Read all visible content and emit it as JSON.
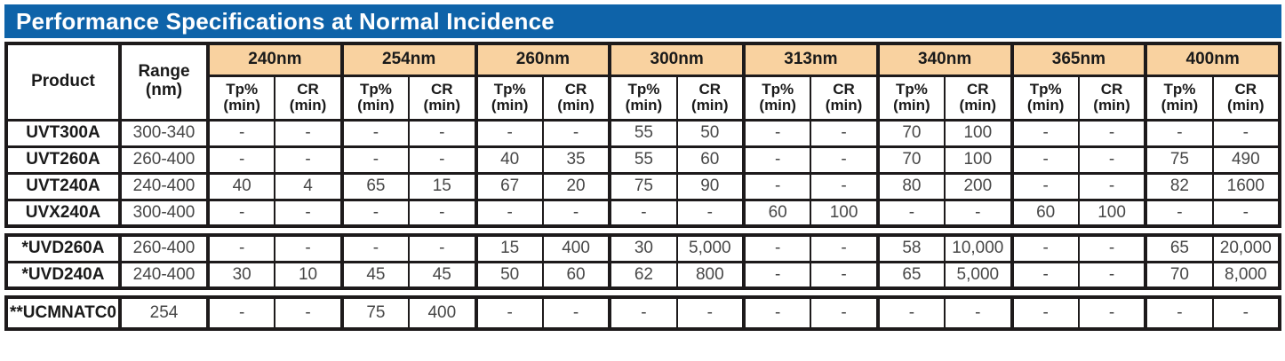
{
  "title": "Performance Specifications at Normal Incidence",
  "header": {
    "product_label": "Product",
    "range_line1": "Range",
    "range_line2": "(nm)",
    "wavelengths": [
      "240nm",
      "254nm",
      "260nm",
      "300nm",
      "313nm",
      "340nm",
      "365nm",
      "400nm"
    ],
    "sub_tp": "Tp%",
    "sub_cr": "CR",
    "sub_min": "(min)"
  },
  "sections": [
    {
      "rows": [
        {
          "product": "UVT300A",
          "range": "300-340",
          "values": [
            "-",
            "-",
            "-",
            "-",
            "-",
            "-",
            "55",
            "50",
            "-",
            "-",
            "70",
            "100",
            "-",
            "-",
            "-",
            "-"
          ]
        },
        {
          "product": "UVT260A",
          "range": "260-400",
          "values": [
            "-",
            "-",
            "-",
            "-",
            "40",
            "35",
            "55",
            "60",
            "-",
            "-",
            "70",
            "100",
            "-",
            "-",
            "75",
            "490"
          ]
        },
        {
          "product": "UVT240A",
          "range": "240-400",
          "values": [
            "40",
            "4",
            "65",
            "15",
            "67",
            "20",
            "75",
            "90",
            "-",
            "-",
            "80",
            "200",
            "-",
            "-",
            "82",
            "1600"
          ]
        },
        {
          "product": "UVX240A",
          "range": "300-400",
          "values": [
            "-",
            "-",
            "-",
            "-",
            "-",
            "-",
            "-",
            "-",
            "60",
            "100",
            "-",
            "-",
            "60",
            "100",
            "-",
            "-"
          ]
        }
      ]
    },
    {
      "rows": [
        {
          "product": "*UVD260A",
          "range": "260-400",
          "values": [
            "-",
            "-",
            "-",
            "-",
            "15",
            "400",
            "30",
            "5,000",
            "-",
            "-",
            "58",
            "10,000",
            "-",
            "-",
            "65",
            "20,000"
          ]
        },
        {
          "product": "*UVD240A",
          "range": "240-400",
          "values": [
            "30",
            "10",
            "45",
            "45",
            "50",
            "60",
            "62",
            "800",
            "-",
            "-",
            "65",
            "5,000",
            "-",
            "-",
            "70",
            "8,000"
          ]
        }
      ]
    },
    {
      "rows": [
        {
          "product": "**UCMNATC0",
          "range": "254",
          "values": [
            "-",
            "-",
            "75",
            "400",
            "-",
            "-",
            "-",
            "-",
            "-",
            "-",
            "-",
            "-",
            "-",
            "-",
            "-",
            "-"
          ]
        }
      ]
    }
  ],
  "colors": {
    "title_bar_bg": "#0e63a9",
    "title_text": "#ffffff",
    "wavelength_header_bg": "#f9d2a0",
    "border": "#1d1a1b",
    "header_text": "#1a1a1a",
    "value_text": "#474747"
  }
}
